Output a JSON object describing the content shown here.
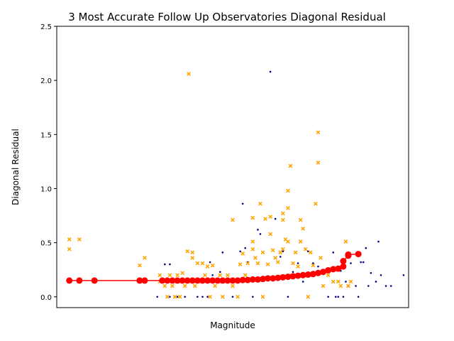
{
  "chart_data": {
    "type": "scatter",
    "title": "3 Most Accurate Follow Up Observatories Diagonal Residual",
    "xlabel": "Magnitude",
    "ylabel": "Diagonal Residual",
    "ylim": [
      -0.1,
      2.5
    ],
    "yticks": [
      "0.0",
      "0.5",
      "1.0",
      "1.5",
      "2.0",
      "2.5"
    ],
    "x_ticks_shown": false,
    "grid": false,
    "legend": "none",
    "colors": {
      "series_a": "#00008b",
      "series_b": "#ffa500",
      "trend": "#ff0000"
    },
    "series": [
      {
        "marker": "dot",
        "color": "#00008b",
        "points": [
          [
            18.0,
            0.0
          ],
          [
            18.3,
            0.3
          ],
          [
            18.5,
            0.0
          ],
          [
            18.5,
            0.3
          ],
          [
            18.8,
            0.0
          ],
          [
            19.1,
            0.0
          ],
          [
            19.6,
            0.0
          ],
          [
            19.8,
            0.0
          ],
          [
            20.0,
            0.0
          ],
          [
            20.1,
            0.32
          ],
          [
            20.2,
            0.2
          ],
          [
            20.5,
            0.23
          ],
          [
            20.6,
            0.41
          ],
          [
            20.8,
            0.2
          ],
          [
            21.0,
            0.0
          ],
          [
            21.3,
            0.42
          ],
          [
            21.4,
            0.86
          ],
          [
            21.5,
            0.45
          ],
          [
            21.6,
            0.32
          ],
          [
            21.8,
            0.0
          ],
          [
            22.0,
            0.62
          ],
          [
            22.1,
            0.58
          ],
          [
            22.3,
            0.18
          ],
          [
            22.5,
            2.08
          ],
          [
            22.7,
            0.72
          ],
          [
            22.9,
            0.37
          ],
          [
            23.0,
            0.42
          ],
          [
            23.2,
            0.0
          ],
          [
            23.4,
            0.23
          ],
          [
            23.6,
            0.31
          ],
          [
            23.8,
            0.14
          ],
          [
            24.0,
            0.42
          ],
          [
            24.2,
            0.31
          ],
          [
            24.4,
            0.28
          ],
          [
            24.6,
            0.23
          ],
          [
            24.8,
            0.0
          ],
          [
            25.0,
            0.41
          ],
          [
            25.1,
            0.0
          ],
          [
            25.2,
            0.0
          ],
          [
            25.3,
            0.24
          ],
          [
            25.4,
            0.0
          ],
          [
            25.5,
            0.14
          ],
          [
            25.6,
            0.1
          ],
          [
            25.7,
            0.31
          ],
          [
            25.9,
            0.1
          ],
          [
            26.0,
            0.0
          ],
          [
            26.1,
            0.32
          ],
          [
            26.2,
            0.32
          ],
          [
            26.3,
            0.45
          ],
          [
            26.4,
            0.1
          ],
          [
            26.5,
            0.22
          ],
          [
            26.7,
            0.14
          ],
          [
            26.8,
            0.51
          ],
          [
            26.9,
            0.2
          ],
          [
            27.1,
            0.1
          ],
          [
            27.3,
            0.1
          ],
          [
            27.8,
            0.2
          ]
        ]
      },
      {
        "marker": "x",
        "color": "#ffa500",
        "points": [
          [
            14.5,
            0.53
          ],
          [
            14.5,
            0.44
          ],
          [
            14.9,
            0.53
          ],
          [
            17.3,
            0.29
          ],
          [
            17.5,
            0.36
          ],
          [
            18.1,
            0.2
          ],
          [
            18.1,
            0.14
          ],
          [
            18.3,
            0.1
          ],
          [
            18.4,
            0.0
          ],
          [
            18.5,
            0.2
          ],
          [
            18.6,
            0.1
          ],
          [
            18.7,
            0.0
          ],
          [
            18.8,
            0.2
          ],
          [
            18.9,
            0.0
          ],
          [
            19.0,
            0.22
          ],
          [
            19.1,
            0.1
          ],
          [
            19.2,
            0.42
          ],
          [
            19.25,
            2.06
          ],
          [
            19.4,
            0.36
          ],
          [
            19.4,
            0.41
          ],
          [
            19.5,
            0.1
          ],
          [
            19.6,
            0.31
          ],
          [
            19.8,
            0.31
          ],
          [
            19.9,
            0.2
          ],
          [
            20.0,
            0.28
          ],
          [
            20.1,
            0.0
          ],
          [
            20.2,
            0.29
          ],
          [
            20.3,
            0.1
          ],
          [
            20.5,
            0.2
          ],
          [
            20.6,
            0.0
          ],
          [
            20.8,
            0.2
          ],
          [
            21.0,
            0.71
          ],
          [
            21.0,
            0.1
          ],
          [
            21.2,
            0.0
          ],
          [
            21.3,
            0.3
          ],
          [
            21.4,
            0.4
          ],
          [
            21.5,
            0.2
          ],
          [
            21.6,
            0.31
          ],
          [
            21.8,
            0.73
          ],
          [
            21.8,
            0.44
          ],
          [
            21.8,
            0.51
          ],
          [
            21.9,
            0.36
          ],
          [
            22.0,
            0.31
          ],
          [
            22.1,
            0.86
          ],
          [
            22.2,
            0.41
          ],
          [
            22.2,
            0.0
          ],
          [
            22.3,
            0.72
          ],
          [
            22.4,
            0.3
          ],
          [
            22.5,
            0.74
          ],
          [
            22.5,
            0.58
          ],
          [
            22.6,
            0.43
          ],
          [
            22.7,
            0.36
          ],
          [
            22.8,
            0.32
          ],
          [
            22.9,
            0.41
          ],
          [
            23.0,
            0.71
          ],
          [
            23.0,
            0.77
          ],
          [
            23.0,
            0.44
          ],
          [
            23.1,
            0.53
          ],
          [
            23.2,
            0.98
          ],
          [
            23.2,
            0.82
          ],
          [
            23.2,
            0.51
          ],
          [
            23.3,
            1.21
          ],
          [
            23.4,
            0.31
          ],
          [
            23.5,
            0.41
          ],
          [
            23.6,
            0.28
          ],
          [
            23.7,
            0.71
          ],
          [
            23.7,
            0.51
          ],
          [
            23.8,
            0.63
          ],
          [
            23.9,
            0.44
          ],
          [
            24.0,
            0.0
          ],
          [
            24.1,
            0.41
          ],
          [
            24.2,
            0.29
          ],
          [
            24.3,
            0.86
          ],
          [
            24.4,
            1.52
          ],
          [
            24.4,
            1.24
          ],
          [
            24.5,
            0.36
          ],
          [
            24.6,
            0.1
          ],
          [
            24.8,
            0.2
          ],
          [
            25.0,
            0.14
          ],
          [
            25.2,
            0.14
          ],
          [
            25.3,
            0.1
          ],
          [
            25.5,
            0.51
          ],
          [
            25.6,
            0.1
          ],
          [
            25.7,
            0.14
          ]
        ]
      },
      {
        "marker": "circle-line",
        "color": "#ff0000",
        "points": [
          [
            14.5,
            0.15
          ],
          [
            14.9,
            0.15
          ],
          [
            15.5,
            0.15
          ],
          [
            17.3,
            0.15
          ],
          [
            17.5,
            0.15
          ],
          [
            18.2,
            0.15
          ],
          [
            18.4,
            0.15
          ],
          [
            18.6,
            0.15
          ],
          [
            18.8,
            0.15
          ],
          [
            19.0,
            0.15
          ],
          [
            19.2,
            0.15
          ],
          [
            19.4,
            0.15
          ],
          [
            19.6,
            0.15
          ],
          [
            19.8,
            0.15
          ],
          [
            20.0,
            0.15
          ],
          [
            20.2,
            0.15
          ],
          [
            20.4,
            0.15
          ],
          [
            20.6,
            0.15
          ],
          [
            20.8,
            0.15
          ],
          [
            21.0,
            0.15
          ],
          [
            21.2,
            0.15
          ],
          [
            21.4,
            0.155
          ],
          [
            21.6,
            0.155
          ],
          [
            21.8,
            0.16
          ],
          [
            22.0,
            0.16
          ],
          [
            22.2,
            0.165
          ],
          [
            22.4,
            0.17
          ],
          [
            22.6,
            0.17
          ],
          [
            22.8,
            0.175
          ],
          [
            23.0,
            0.18
          ],
          [
            23.2,
            0.185
          ],
          [
            23.4,
            0.19
          ],
          [
            23.6,
            0.195
          ],
          [
            23.8,
            0.2
          ],
          [
            24.0,
            0.205
          ],
          [
            24.2,
            0.21
          ],
          [
            24.4,
            0.22
          ],
          [
            24.6,
            0.23
          ],
          [
            24.8,
            0.245
          ],
          [
            25.0,
            0.255
          ],
          [
            25.2,
            0.26
          ],
          [
            25.4,
            0.28
          ],
          [
            25.4,
            0.33
          ],
          [
            25.6,
            0.38
          ],
          [
            25.6,
            0.39
          ],
          [
            26.0,
            0.395
          ]
        ]
      }
    ]
  }
}
